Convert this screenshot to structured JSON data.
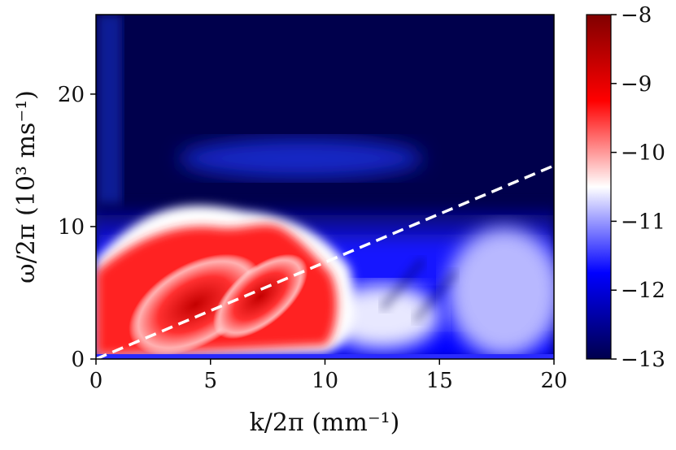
{
  "chart_data": {
    "type": "heatmap",
    "title": "",
    "xlabel": "k/2π (mm⁻¹)",
    "ylabel": "ω/2π (10³ ms⁻¹)",
    "xlim": [
      0,
      20
    ],
    "ylim": [
      0,
      26
    ],
    "xticks": [
      0,
      5,
      10,
      15,
      20
    ],
    "yticks": [
      0,
      10,
      20
    ],
    "xtick_labels": [
      "0",
      "5",
      "10",
      "15",
      "20"
    ],
    "ytick_labels": [
      "0",
      "10",
      "20"
    ],
    "colorbar": {
      "range": [
        -13,
        -8
      ],
      "ticks": [
        -13,
        -12,
        -11,
        -10,
        -9,
        -8
      ],
      "tick_labels": [
        "−13",
        "−12",
        "−11",
        "−10",
        "−9",
        "−8"
      ],
      "colormap": "seismic"
    },
    "dispersion_line": {
      "style": "dashed",
      "color": "#ffffff",
      "x": [
        0,
        20
      ],
      "y": [
        0,
        14.6
      ]
    },
    "features": [
      {
        "name": "high-intensity wedge",
        "k_range": [
          0,
          11
        ],
        "omega_range": [
          0,
          10
        ],
        "level": -9
      },
      {
        "name": "faint horizontal band",
        "k_range": [
          4,
          14
        ],
        "omega_range": [
          14,
          16
        ],
        "level": -12.5
      },
      {
        "name": "flat-band edge",
        "k_range": [
          0,
          20
        ],
        "omega_value": 11.5,
        "level": -12
      }
    ]
  }
}
